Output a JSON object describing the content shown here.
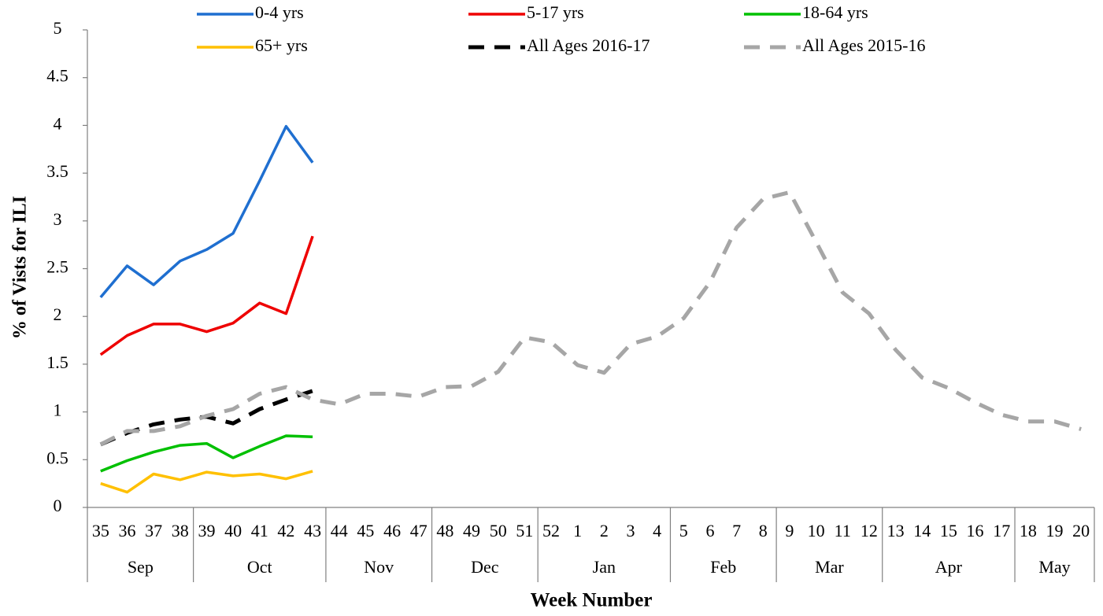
{
  "chart_data": {
    "type": "line",
    "y_axis_label": "% of Vists for ILI",
    "x_axis_label": "Week Number",
    "categories": [
      35,
      36,
      37,
      38,
      39,
      40,
      41,
      42,
      43,
      44,
      45,
      46,
      47,
      48,
      49,
      50,
      51,
      52,
      1,
      2,
      3,
      4,
      5,
      6,
      7,
      8,
      9,
      10,
      11,
      12,
      13,
      14,
      15,
      16,
      17,
      18,
      19,
      20
    ],
    "month_groups": [
      {
        "label": "Sep",
        "count": 4
      },
      {
        "label": "Oct",
        "count": 5
      },
      {
        "label": "Nov",
        "count": 4
      },
      {
        "label": "Dec",
        "count": 4
      },
      {
        "label": "Jan",
        "count": 5
      },
      {
        "label": "Feb",
        "count": 4
      },
      {
        "label": "Mar",
        "count": 4
      },
      {
        "label": "Apr",
        "count": 5
      },
      {
        "label": "May",
        "count": 3
      }
    ],
    "ylim": [
      0,
      5
    ],
    "yticks": [
      0,
      0.5,
      1,
      1.5,
      2,
      2.5,
      3,
      3.5,
      4,
      4.5,
      5
    ],
    "grid": false,
    "legend": "top",
    "series": [
      {
        "name": "0-4 yrs",
        "color": "#1f6fd0",
        "dashed": false,
        "values": [
          2.2,
          2.53,
          2.33,
          2.58,
          2.7,
          2.87,
          3.42,
          3.99,
          3.61,
          null,
          null,
          null,
          null,
          null,
          null,
          null,
          null,
          null,
          null,
          null,
          null,
          null,
          null,
          null,
          null,
          null,
          null,
          null,
          null,
          null,
          null,
          null,
          null,
          null,
          null,
          null,
          null,
          null
        ]
      },
      {
        "name": "5-17 yrs",
        "color": "#ee0000",
        "dashed": false,
        "values": [
          1.6,
          1.8,
          1.92,
          1.92,
          1.84,
          1.93,
          2.14,
          2.03,
          2.84,
          null,
          null,
          null,
          null,
          null,
          null,
          null,
          null,
          null,
          null,
          null,
          null,
          null,
          null,
          null,
          null,
          null,
          null,
          null,
          null,
          null,
          null,
          null,
          null,
          null,
          null,
          null,
          null,
          null
        ]
      },
      {
        "name": "18-64 yrs",
        "color": "#00c000",
        "dashed": false,
        "values": [
          0.38,
          0.49,
          0.58,
          0.65,
          0.67,
          0.52,
          0.64,
          0.75,
          0.74,
          null,
          null,
          null,
          null,
          null,
          null,
          null,
          null,
          null,
          null,
          null,
          null,
          null,
          null,
          null,
          null,
          null,
          null,
          null,
          null,
          null,
          null,
          null,
          null,
          null,
          null,
          null,
          null,
          null
        ]
      },
      {
        "name": "65+ yrs",
        "color": "#ffc000",
        "dashed": false,
        "values": [
          0.25,
          0.16,
          0.35,
          0.29,
          0.37,
          0.33,
          0.35,
          0.3,
          0.38,
          null,
          null,
          null,
          null,
          null,
          null,
          null,
          null,
          null,
          null,
          null,
          null,
          null,
          null,
          null,
          null,
          null,
          null,
          null,
          null,
          null,
          null,
          null,
          null,
          null,
          null,
          null,
          null,
          null
        ]
      },
      {
        "name": "All Ages 2016-17",
        "color": "#000000",
        "dashed": true,
        "values": [
          0.66,
          0.78,
          0.87,
          0.92,
          0.95,
          0.88,
          1.03,
          1.13,
          1.22,
          null,
          null,
          null,
          null,
          null,
          null,
          null,
          null,
          null,
          null,
          null,
          null,
          null,
          null,
          null,
          null,
          null,
          null,
          null,
          null,
          null,
          null,
          null,
          null,
          null,
          null,
          null,
          null,
          null
        ]
      },
      {
        "name": "All Ages 2015-16",
        "color": "#a6a6a6",
        "dashed": true,
        "values": [
          0.66,
          0.8,
          0.8,
          0.85,
          0.96,
          1.03,
          1.19,
          1.26,
          1.13,
          1.08,
          1.19,
          1.19,
          1.16,
          1.26,
          1.27,
          1.42,
          1.78,
          1.73,
          1.49,
          1.41,
          1.71,
          1.79,
          1.98,
          2.36,
          2.93,
          3.23,
          3.3,
          2.78,
          2.25,
          2.03,
          1.65,
          1.36,
          1.25,
          1.1,
          0.97,
          0.9,
          0.9,
          0.82
        ]
      }
    ]
  }
}
